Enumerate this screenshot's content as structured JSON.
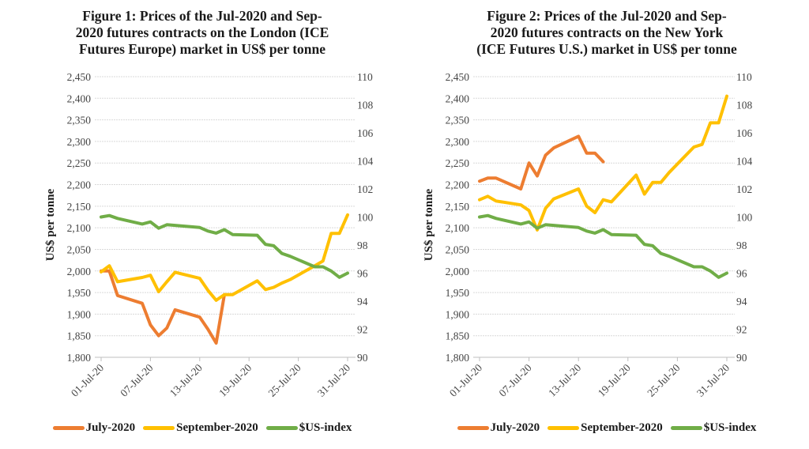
{
  "chart_data": [
    {
      "type": "line",
      "title_lines": [
        "Figure 1: Prices of the Jul-2020 and Sep-",
        "2020 futures contracts on the London (ICE",
        "Futures Europe) market in US$ per tonne"
      ],
      "xlabel": "",
      "ylabel": "US$ per tonne",
      "ylim": [
        1800,
        2450
      ],
      "y_ticks": [
        "1,800",
        "1,850",
        "1,900",
        "1,950",
        "2,000",
        "2,050",
        "2,100",
        "2,150",
        "2,200",
        "2,250",
        "2,300",
        "2,350",
        "2,400",
        "2,450"
      ],
      "y_tick_values": [
        1800,
        1850,
        1900,
        1950,
        2000,
        2050,
        2100,
        2150,
        2200,
        2250,
        2300,
        2350,
        2400,
        2450
      ],
      "y2lim": [
        90,
        110
      ],
      "y2_ticks": [
        "90",
        "92",
        "94",
        "96",
        "98",
        "100",
        "102",
        "104",
        "106",
        "108",
        "110"
      ],
      "y2_tick_values": [
        90,
        92,
        94,
        96,
        98,
        100,
        102,
        104,
        106,
        108,
        110
      ],
      "xlim_day": [
        1,
        31
      ],
      "x_ticks": [
        "01-Jul-20",
        "07-Jul-20",
        "13-Jul-20",
        "19-Jul-20",
        "25-Jul-20",
        "31-Jul-20"
      ],
      "x_tick_days": [
        1,
        7,
        13,
        19,
        25,
        31
      ],
      "grid": true,
      "legend_position": "bottom",
      "series": [
        {
          "name": "July-2020",
          "color": "#ED7D31",
          "axis": "left",
          "x_day": [
            1,
            2,
            3,
            6,
            7,
            8,
            9,
            10,
            13,
            14,
            15,
            16
          ],
          "values": [
            2000,
            2000,
            1943,
            1925,
            1875,
            1850,
            1868,
            1910,
            1893,
            1865,
            1833,
            1945
          ]
        },
        {
          "name": "September-2020",
          "color": "#FFC000",
          "axis": "left",
          "x_day": [
            1,
            2,
            3,
            6,
            7,
            8,
            9,
            10,
            13,
            14,
            15,
            16,
            17,
            20,
            21,
            22,
            23,
            24,
            27,
            28,
            29,
            30,
            31
          ],
          "values": [
            1998,
            2012,
            1975,
            1985,
            1990,
            1952,
            1975,
            1997,
            1983,
            1955,
            1932,
            1945,
            1945,
            1977,
            1957,
            1962,
            1972,
            1980,
            2012,
            2023,
            2087,
            2087,
            2130
          ]
        },
        {
          "name": "$US-index",
          "color": "#70AD47",
          "axis": "right",
          "x_day": [
            1,
            2,
            3,
            6,
            7,
            8,
            9,
            10,
            13,
            14,
            15,
            16,
            17,
            20,
            21,
            22,
            23,
            24,
            27,
            28,
            29,
            30,
            31
          ],
          "values": [
            100.0,
            100.1,
            99.9,
            99.5,
            99.65,
            99.2,
            99.45,
            99.4,
            99.25,
            99.0,
            98.85,
            99.1,
            98.75,
            98.7,
            98.05,
            97.95,
            97.4,
            97.2,
            96.45,
            96.45,
            96.15,
            95.7,
            96.0
          ]
        }
      ]
    },
    {
      "type": "line",
      "title_lines": [
        "Figure 2: Prices of the Jul-2020 and Sep-",
        "2020 futures contracts on the New York",
        "(ICE Futures U.S.) market in US$ per tonne"
      ],
      "xlabel": "",
      "ylabel": "US$ per tonne",
      "ylim": [
        1800,
        2450
      ],
      "y_ticks": [
        "1,800",
        "1,850",
        "1,900",
        "1,950",
        "2,000",
        "2,050",
        "2,100",
        "2,150",
        "2,200",
        "2,250",
        "2,300",
        "2,350",
        "2,400",
        "2,450"
      ],
      "y_tick_values": [
        1800,
        1850,
        1900,
        1950,
        2000,
        2050,
        2100,
        2150,
        2200,
        2250,
        2300,
        2350,
        2400,
        2450
      ],
      "y2lim": [
        90,
        110
      ],
      "y2_ticks": [
        "90",
        "92",
        "94",
        "96",
        "98",
        "100",
        "102",
        "104",
        "106",
        "108",
        "110"
      ],
      "y2_tick_values": [
        90,
        92,
        94,
        96,
        98,
        100,
        102,
        104,
        106,
        108,
        110
      ],
      "xlim_day": [
        1,
        31
      ],
      "x_ticks": [
        "01-Jul-20",
        "07-Jul-20",
        "13-Jul-20",
        "19-Jul-20",
        "25-Jul-20",
        "31-Jul-20"
      ],
      "x_tick_days": [
        1,
        7,
        13,
        19,
        25,
        31
      ],
      "grid": true,
      "legend_position": "bottom",
      "series": [
        {
          "name": "July-2020",
          "color": "#ED7D31",
          "axis": "left",
          "x_day": [
            1,
            2,
            3,
            6,
            7,
            8,
            9,
            10,
            13,
            14,
            15,
            16
          ],
          "values": [
            2208,
            2215,
            2215,
            2190,
            2250,
            2220,
            2268,
            2285,
            2312,
            2273,
            2273,
            2253
          ]
        },
        {
          "name": "September-2020",
          "color": "#FFC000",
          "axis": "left",
          "x_day": [
            1,
            2,
            3,
            6,
            7,
            8,
            9,
            10,
            13,
            14,
            15,
            16,
            17,
            20,
            21,
            22,
            23,
            24,
            27,
            28,
            29,
            30,
            31
          ],
          "values": [
            2165,
            2173,
            2162,
            2153,
            2140,
            2095,
            2145,
            2167,
            2190,
            2150,
            2135,
            2165,
            2160,
            2222,
            2178,
            2205,
            2205,
            2228,
            2287,
            2293,
            2343,
            2343,
            2405
          ]
        },
        {
          "name": "$US-index",
          "color": "#70AD47",
          "axis": "right",
          "x_day": [
            1,
            2,
            3,
            6,
            7,
            8,
            9,
            10,
            13,
            14,
            15,
            16,
            17,
            20,
            21,
            22,
            23,
            24,
            27,
            28,
            29,
            30,
            31
          ],
          "values": [
            100.0,
            100.1,
            99.9,
            99.5,
            99.65,
            99.2,
            99.45,
            99.4,
            99.25,
            99.0,
            98.85,
            99.1,
            98.75,
            98.7,
            98.05,
            97.95,
            97.4,
            97.2,
            96.45,
            96.45,
            96.15,
            95.7,
            96.0
          ]
        }
      ]
    }
  ]
}
